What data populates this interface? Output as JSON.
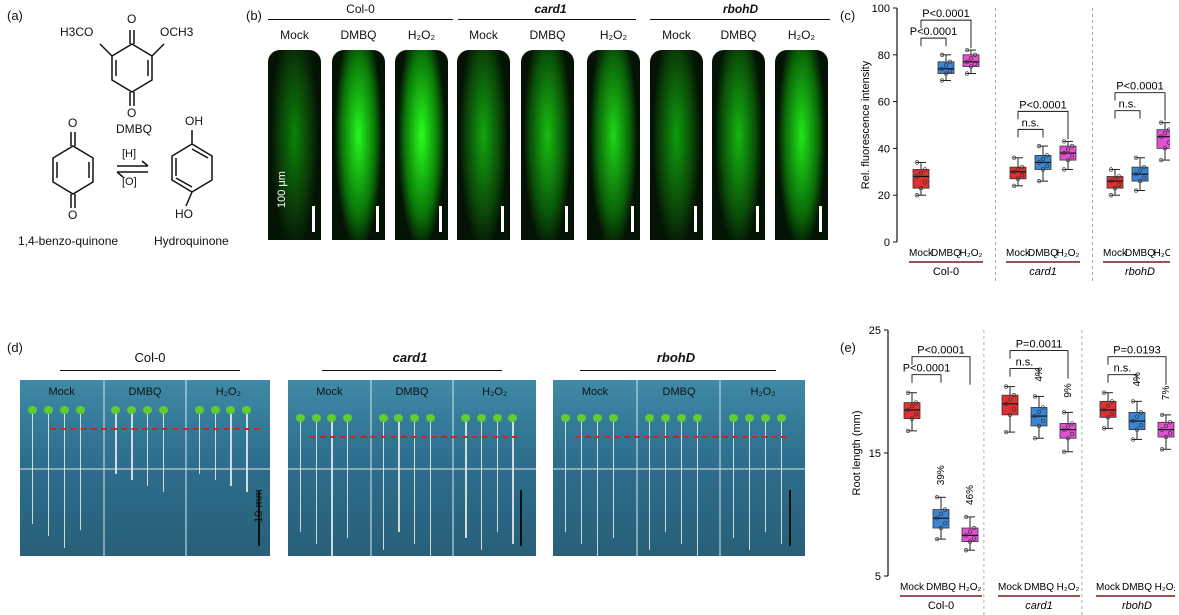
{
  "panels": {
    "a": "(a)",
    "b": "(b)",
    "c": "(c)",
    "d": "(d)",
    "e": "(e)"
  },
  "chem": {
    "sub_left": "H3CO",
    "sub_right": "OCH3",
    "o_top": "O",
    "o_bottom": "O",
    "dmbq_name": "DMBQ",
    "bq_o_top": "O",
    "bq_o_bottom": "O",
    "bq_name": "1,4-benzo-quinone",
    "hq_oh_top": "OH",
    "hq_oh_bottom": "HO",
    "hq_name": "Hydroquinone",
    "reduce": "[H]",
    "oxidize": "[O]"
  },
  "genotypes": [
    "Col-0",
    "card1",
    "rbohD"
  ],
  "treatments": [
    "Mock",
    "DMBQ",
    "H2O2"
  ],
  "treatment_display": [
    "Mock",
    "DMBQ",
    "H₂O₂"
  ],
  "micro": {
    "scale_label": "100 μm",
    "brightness": [
      0.25,
      0.95,
      1.0,
      0.45,
      0.6,
      0.75,
      0.4,
      0.55,
      0.85
    ]
  },
  "photo": {
    "scale_label": "10 mm",
    "colors": {
      "green_leaf": "#5fcf2d",
      "red_line": "#d0212a",
      "plate_blue": "#2d6f8e"
    }
  },
  "colors": {
    "mock": "#e03030",
    "dmbq": "#3a86d6",
    "h2o2": "#e44fd4"
  },
  "chart_data": [
    {
      "panel": "c",
      "type": "box",
      "ylabel": "Rel. fluorescence intensity",
      "ylim": [
        0,
        100
      ],
      "yticks": [
        0,
        20,
        40,
        60,
        80,
        100
      ],
      "groups": [
        "Col-0",
        "card1",
        "rbohD"
      ],
      "categories": [
        "Mock",
        "DMBQ",
        "H2O2"
      ],
      "boxes": [
        {
          "group": "Col-0",
          "cat": "Mock",
          "min": 20,
          "q1": 23,
          "median": 28,
          "q3": 31,
          "max": 34
        },
        {
          "group": "Col-0",
          "cat": "DMBQ",
          "min": 69,
          "q1": 72,
          "median": 74,
          "q3": 77,
          "max": 80
        },
        {
          "group": "Col-0",
          "cat": "H2O2",
          "min": 72,
          "q1": 75,
          "median": 77,
          "q3": 80,
          "max": 82
        },
        {
          "group": "card1",
          "cat": "Mock",
          "min": 24,
          "q1": 27,
          "median": 30,
          "q3": 32,
          "max": 36
        },
        {
          "group": "card1",
          "cat": "DMBQ",
          "min": 26,
          "q1": 31,
          "median": 34,
          "q3": 37,
          "max": 41
        },
        {
          "group": "card1",
          "cat": "H2O2",
          "min": 31,
          "q1": 35,
          "median": 38,
          "q3": 41,
          "max": 43
        },
        {
          "group": "rbohD",
          "cat": "Mock",
          "min": 20,
          "q1": 23,
          "median": 26,
          "q3": 28,
          "max": 31
        },
        {
          "group": "rbohD",
          "cat": "DMBQ",
          "min": 22,
          "q1": 26,
          "median": 29,
          "q3": 32,
          "max": 36
        },
        {
          "group": "rbohD",
          "cat": "H2O2",
          "min": 35,
          "q1": 40,
          "median": 45,
          "q3": 48,
          "max": 51
        }
      ],
      "annotations": [
        {
          "group": "Col-0",
          "from": "Mock",
          "to": "H2O2",
          "text": "P<0.0001"
        },
        {
          "group": "Col-0",
          "from": "Mock",
          "to": "DMBQ",
          "text": "P<0.0001"
        },
        {
          "group": "card1",
          "from": "Mock",
          "to": "H2O2",
          "text": "P<0.0001"
        },
        {
          "group": "card1",
          "from": "Mock",
          "to": "DMBQ",
          "text": "n.s."
        },
        {
          "group": "rbohD",
          "from": "Mock",
          "to": "H2O2",
          "text": "P<0.0001"
        },
        {
          "group": "rbohD",
          "from": "Mock",
          "to": "DMBQ",
          "text": "n.s."
        }
      ]
    },
    {
      "panel": "e",
      "type": "box",
      "ylabel": "Root length (mm)",
      "ylim": [
        5,
        25
      ],
      "yticks": [
        5,
        15,
        25
      ],
      "groups": [
        "Col-0",
        "card1",
        "rbohD"
      ],
      "categories": [
        "Mock",
        "DMBQ",
        "H2O2"
      ],
      "boxes": [
        {
          "group": "Col-0",
          "cat": "Mock",
          "min": 16.8,
          "q1": 17.8,
          "median": 18.5,
          "q3": 19.1,
          "max": 19.9
        },
        {
          "group": "Col-0",
          "cat": "DMBQ",
          "min": 8.0,
          "q1": 8.9,
          "median": 9.7,
          "q3": 10.4,
          "max": 11.4
        },
        {
          "group": "Col-0",
          "cat": "H2O2",
          "min": 7.1,
          "q1": 7.8,
          "median": 8.3,
          "q3": 8.9,
          "max": 9.8
        },
        {
          "group": "card1",
          "cat": "Mock",
          "min": 16.7,
          "q1": 18.1,
          "median": 19.0,
          "q3": 19.7,
          "max": 20.4
        },
        {
          "group": "card1",
          "cat": "DMBQ",
          "min": 16.2,
          "q1": 17.2,
          "median": 18.0,
          "q3": 18.7,
          "max": 19.6
        },
        {
          "group": "card1",
          "cat": "H2O2",
          "min": 15.1,
          "q1": 16.2,
          "median": 16.9,
          "q3": 17.4,
          "max": 18.3
        },
        {
          "group": "rbohD",
          "cat": "Mock",
          "min": 17.0,
          "q1": 17.9,
          "median": 18.5,
          "q3": 19.2,
          "max": 19.9
        },
        {
          "group": "rbohD",
          "cat": "DMBQ",
          "min": 16.1,
          "q1": 16.9,
          "median": 17.6,
          "q3": 18.3,
          "max": 19.2
        },
        {
          "group": "rbohD",
          "cat": "H2O2",
          "min": 15.3,
          "q1": 16.3,
          "median": 16.9,
          "q3": 17.5,
          "max": 18.1
        }
      ],
      "percent_labels": [
        {
          "group": "Col-0",
          "cat": "DMBQ",
          "text": "39%"
        },
        {
          "group": "Col-0",
          "cat": "H2O2",
          "text": "46%"
        },
        {
          "group": "card1",
          "cat": "DMBQ",
          "text": "4%"
        },
        {
          "group": "card1",
          "cat": "H2O2",
          "text": "9%"
        },
        {
          "group": "rbohD",
          "cat": "DMBQ",
          "text": "4%"
        },
        {
          "group": "rbohD",
          "cat": "H2O2",
          "text": "7%"
        }
      ],
      "annotations": [
        {
          "group": "Col-0",
          "from": "Mock",
          "to": "H2O2",
          "text": "P<0.0001"
        },
        {
          "group": "Col-0",
          "from": "Mock",
          "to": "DMBQ",
          "text": "P<0.0001"
        },
        {
          "group": "card1",
          "from": "Mock",
          "to": "H2O2",
          "text": "P=0.0011"
        },
        {
          "group": "card1",
          "from": "Mock",
          "to": "DMBQ",
          "text": "n.s."
        },
        {
          "group": "rbohD",
          "from": "Mock",
          "to": "H2O2",
          "text": "P=0.0193"
        },
        {
          "group": "rbohD",
          "from": "Mock",
          "to": "DMBQ",
          "text": "n.s."
        }
      ]
    }
  ]
}
